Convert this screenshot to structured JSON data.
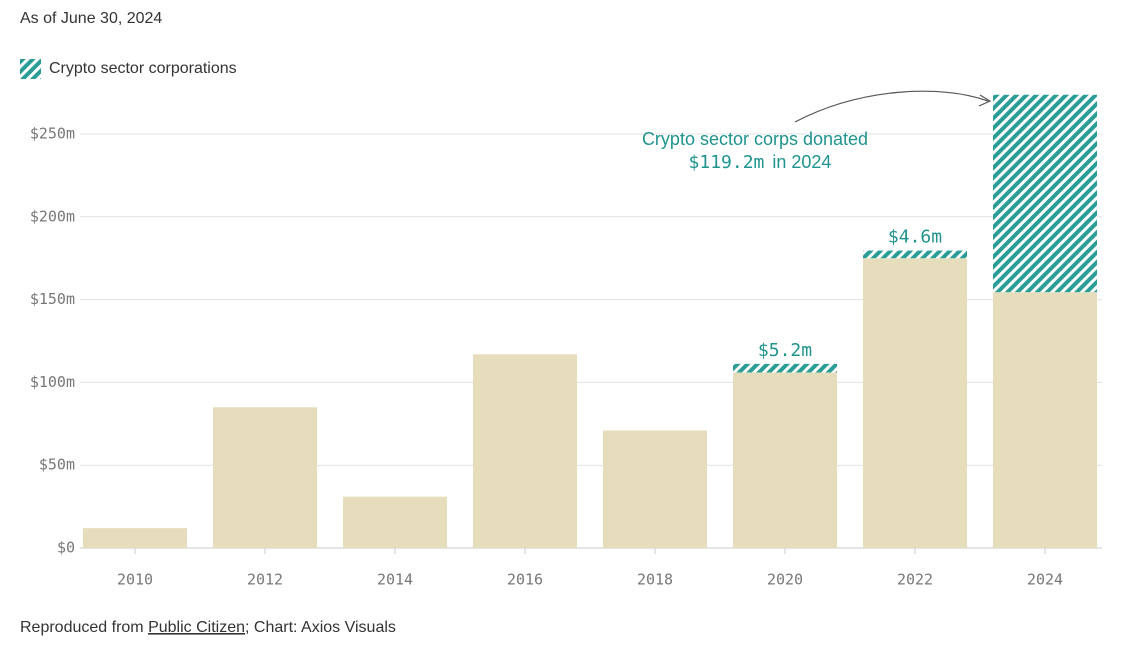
{
  "chart_data": {
    "type": "bar",
    "subtitle": "As of June 30, 2024",
    "stacked": true,
    "categories": [
      "2010",
      "2012",
      "2014",
      "2016",
      "2018",
      "2020",
      "2022",
      "2024"
    ],
    "series": [
      {
        "color": "#e5ddbb",
        "values": [
          12,
          85,
          31,
          117,
          71,
          106,
          175,
          154.5
        ]
      },
      {
        "name": "Crypto sector corporations",
        "color": "#2a9d97",
        "hatched": true,
        "values": [
          null,
          null,
          null,
          null,
          null,
          5.2,
          4.6,
          119.2
        ],
        "value_labels": [
          null,
          null,
          null,
          null,
          null,
          "$5.2m",
          "$4.6m",
          "$119.2m"
        ]
      }
    ],
    "ylim": [
      0,
      275
    ],
    "yticks": [
      {
        "value": 0,
        "label": "$0"
      },
      {
        "value": 50,
        "label": "$50m"
      },
      {
        "value": 100,
        "label": "$100m"
      },
      {
        "value": 150,
        "label": "$150m"
      },
      {
        "value": 200,
        "label": "$200m"
      },
      {
        "value": 250,
        "label": "$250m"
      }
    ],
    "grid": true,
    "annotation": {
      "before": "Crypto sector corps donated",
      "after": "in 2024"
    },
    "source": {
      "prefix": "Reproduced from",
      "link": "Public Citizen",
      "suffix": "; Chart: Axios Visuals"
    }
  }
}
